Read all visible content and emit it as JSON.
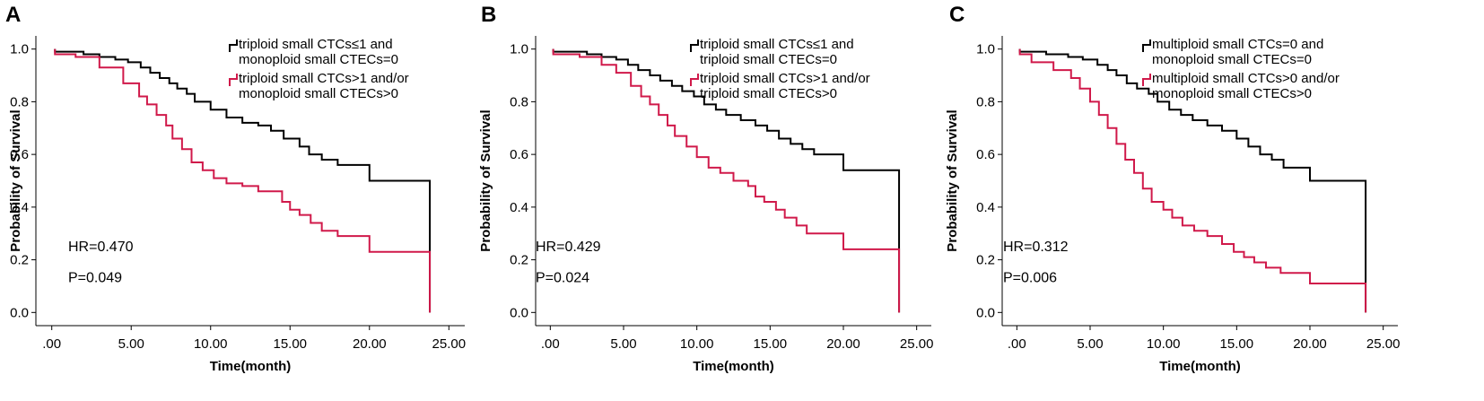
{
  "colors": {
    "group1": "#000000",
    "group2": "#d0194a"
  },
  "chart_data": [
    {
      "type": "line",
      "panel": "A",
      "xlabel": "Time(month)",
      "ylabel": "Probability of Survival",
      "xlim": [
        -1,
        26
      ],
      "ylim": [
        -0.05,
        1.05
      ],
      "xticks": [
        {
          "value": 0,
          "label": ".00"
        },
        {
          "value": 5,
          "label": "5.00"
        },
        {
          "value": 10,
          "label": "10.00"
        },
        {
          "value": 15,
          "label": "15.00"
        },
        {
          "value": 20,
          "label": "20.00"
        },
        {
          "value": 25,
          "label": "25.00"
        }
      ],
      "yticks": [
        {
          "value": 0,
          "label": "0.0"
        },
        {
          "value": 0.2,
          "label": "0.2"
        },
        {
          "value": 0.4,
          "label": "0.4"
        },
        {
          "value": 0.6,
          "label": "0.6"
        },
        {
          "value": 0.8,
          "label": "0.8"
        },
        {
          "value": 1.0,
          "label": "1.0"
        }
      ],
      "hr": "HR=0.470",
      "p": "P=0.049",
      "series": [
        {
          "name": "triploid small CTCs≤1 and monoploid small CTECs=0",
          "legend_lines": [
            "triploid small CTCs≤1 and",
            "monoploid small CTECs=0"
          ],
          "color": "#000000",
          "x": [
            0.2,
            2.0,
            3.0,
            4.0,
            4.8,
            5.6,
            6.2,
            6.8,
            7.4,
            7.9,
            8.5,
            9.0,
            10.0,
            11.0,
            12.0,
            13.0,
            13.8,
            14.6,
            15.6,
            16.2,
            17.0,
            18.0,
            20.0,
            23.8
          ],
          "y": [
            0.99,
            0.98,
            0.97,
            0.96,
            0.95,
            0.93,
            0.91,
            0.89,
            0.87,
            0.85,
            0.83,
            0.8,
            0.77,
            0.74,
            0.72,
            0.71,
            0.69,
            0.66,
            0.63,
            0.6,
            0.58,
            0.56,
            0.5,
            0.0
          ],
          "end": 23.8
        },
        {
          "name": "triploid small CTCs>1 and/or monoploid small CTECs>0",
          "legend_lines": [
            "triploid small CTCs>1 and/or",
            "monoploid small CTECs>0"
          ],
          "color": "#d0194a",
          "x": [
            0.2,
            1.5,
            3.0,
            4.5,
            5.5,
            6.0,
            6.6,
            7.2,
            7.6,
            8.2,
            8.8,
            9.5,
            10.2,
            11.0,
            12.0,
            13.0,
            14.5,
            15.0,
            15.6,
            16.3,
            17.0,
            18.0,
            20.0,
            23.8
          ],
          "y": [
            0.98,
            0.97,
            0.93,
            0.87,
            0.82,
            0.79,
            0.75,
            0.71,
            0.66,
            0.62,
            0.57,
            0.54,
            0.51,
            0.49,
            0.48,
            0.46,
            0.42,
            0.39,
            0.37,
            0.34,
            0.31,
            0.29,
            0.23,
            0.0
          ],
          "end": 23.8
        }
      ]
    },
    {
      "type": "line",
      "panel": "B",
      "xlabel": "Time(month)",
      "ylabel": "Probability of Survival",
      "xlim": [
        -1,
        26
      ],
      "ylim": [
        -0.05,
        1.05
      ],
      "xticks": [
        {
          "value": 0,
          "label": ".00"
        },
        {
          "value": 5,
          "label": "5.00"
        },
        {
          "value": 10,
          "label": "10.00"
        },
        {
          "value": 15,
          "label": "15.00"
        },
        {
          "value": 20,
          "label": "20.00"
        },
        {
          "value": 25,
          "label": "25.00"
        }
      ],
      "yticks": [
        {
          "value": 0,
          "label": "0.0"
        },
        {
          "value": 0.2,
          "label": "0.2"
        },
        {
          "value": 0.4,
          "label": "0.4"
        },
        {
          "value": 0.6,
          "label": "0.6"
        },
        {
          "value": 0.8,
          "label": "0.8"
        },
        {
          "value": 1.0,
          "label": "1.0"
        }
      ],
      "hr": "HR=0.429",
      "p": "P=0.024",
      "series": [
        {
          "name": "triploid small CTCs≤1 and triploid small CTECs=0",
          "legend_lines": [
            "triploid small CTCs≤1 and",
            "triploid small CTECs=0"
          ],
          "color": "#000000",
          "x": [
            0.2,
            2.5,
            3.5,
            4.5,
            5.3,
            6.0,
            6.8,
            7.5,
            8.3,
            9.0,
            9.8,
            10.5,
            11.3,
            12.0,
            13.0,
            14.0,
            14.8,
            15.6,
            16.4,
            17.2,
            18.0,
            20.0,
            23.8
          ],
          "y": [
            0.99,
            0.98,
            0.97,
            0.96,
            0.94,
            0.92,
            0.9,
            0.88,
            0.86,
            0.84,
            0.82,
            0.79,
            0.77,
            0.75,
            0.73,
            0.71,
            0.69,
            0.66,
            0.64,
            0.62,
            0.6,
            0.54,
            0.0
          ],
          "end": 23.8
        },
        {
          "name": "triploid small CTCs>1 and/or triploid small CTECs>0",
          "legend_lines": [
            "triploid small CTCs>1 and/or",
            "triploid small CTECs>0"
          ],
          "color": "#d0194a",
          "x": [
            0.2,
            2.0,
            3.5,
            4.5,
            5.5,
            6.2,
            6.8,
            7.4,
            8.0,
            8.5,
            9.3,
            10.0,
            10.8,
            11.6,
            12.5,
            13.5,
            14.0,
            14.6,
            15.4,
            16.0,
            16.8,
            17.5,
            20.0,
            23.8
          ],
          "y": [
            0.98,
            0.97,
            0.94,
            0.91,
            0.86,
            0.82,
            0.79,
            0.75,
            0.71,
            0.67,
            0.63,
            0.59,
            0.55,
            0.53,
            0.5,
            0.48,
            0.44,
            0.42,
            0.39,
            0.36,
            0.33,
            0.3,
            0.24,
            0.0
          ],
          "end": 23.8
        }
      ]
    },
    {
      "type": "line",
      "panel": "C",
      "xlabel": "Time(month)",
      "ylabel": "Probability of Survival",
      "xlim": [
        -1,
        26
      ],
      "ylim": [
        -0.05,
        1.05
      ],
      "xticks": [
        {
          "value": 0,
          "label": ".00"
        },
        {
          "value": 5,
          "label": "5.00"
        },
        {
          "value": 10,
          "label": "10.00"
        },
        {
          "value": 15,
          "label": "15.00"
        },
        {
          "value": 20,
          "label": "20.00"
        },
        {
          "value": 25,
          "label": "25.00"
        }
      ],
      "yticks": [
        {
          "value": 0,
          "label": "0.0"
        },
        {
          "value": 0.2,
          "label": "0.2"
        },
        {
          "value": 0.4,
          "label": "0.4"
        },
        {
          "value": 0.6,
          "label": "0.6"
        },
        {
          "value": 0.8,
          "label": "0.8"
        },
        {
          "value": 1.0,
          "label": "1.0"
        }
      ],
      "hr": "HR=0.312",
      "p": "P=0.006",
      "series": [
        {
          "name": "multiploid small CTCs=0 and monoploid small CTECs=0",
          "legend_lines": [
            "multiploid small CTCs=0 and",
            "monoploid small CTECs=0"
          ],
          "color": "#000000",
          "x": [
            0.2,
            2.0,
            3.5,
            4.5,
            5.5,
            6.2,
            6.8,
            7.5,
            8.2,
            9.0,
            9.6,
            10.4,
            11.2,
            12.0,
            13.0,
            14.0,
            15.0,
            15.8,
            16.6,
            17.4,
            18.2,
            20.0,
            23.8
          ],
          "y": [
            0.99,
            0.98,
            0.97,
            0.96,
            0.94,
            0.92,
            0.9,
            0.87,
            0.85,
            0.83,
            0.8,
            0.77,
            0.75,
            0.73,
            0.71,
            0.69,
            0.66,
            0.63,
            0.6,
            0.58,
            0.55,
            0.5,
            0.0
          ],
          "end": 23.8
        },
        {
          "name": "multiploid small CTCs>0 and/or monoploid small CTECs>0",
          "legend_lines": [
            "multiploid small CTCs>0 and/or",
            "monoploid small CTECs>0"
          ],
          "color": "#d0194a",
          "x": [
            0.2,
            1.0,
            2.5,
            3.7,
            4.3,
            5.0,
            5.6,
            6.2,
            6.8,
            7.4,
            8.0,
            8.6,
            9.2,
            10.0,
            10.6,
            11.3,
            12.1,
            13.0,
            14.0,
            14.8,
            15.5,
            16.2,
            17.0,
            18.0,
            20.0,
            23.8
          ],
          "y": [
            0.98,
            0.95,
            0.92,
            0.89,
            0.85,
            0.8,
            0.75,
            0.7,
            0.64,
            0.58,
            0.53,
            0.47,
            0.42,
            0.39,
            0.36,
            0.33,
            0.31,
            0.29,
            0.26,
            0.23,
            0.21,
            0.19,
            0.17,
            0.15,
            0.11,
            0.0
          ],
          "end": 23.8
        }
      ]
    }
  ]
}
